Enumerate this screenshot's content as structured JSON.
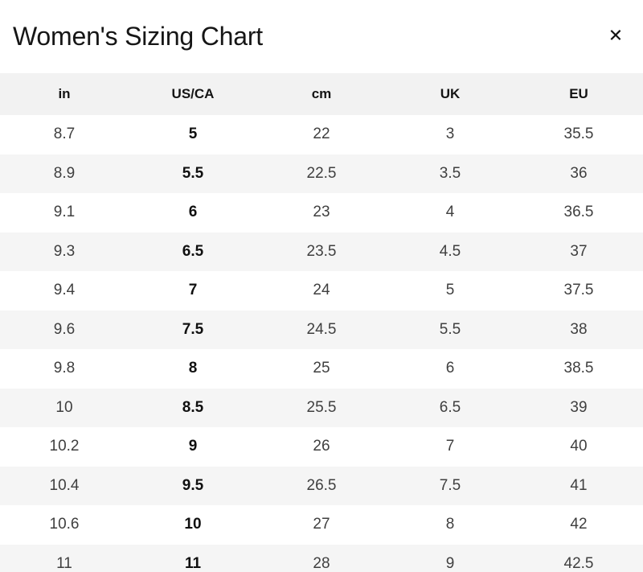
{
  "modal": {
    "title": "Women's Sizing Chart",
    "close_glyph": "✕"
  },
  "table": {
    "columns": [
      "in",
      "US/CA",
      "cm",
      "UK",
      "EU"
    ],
    "bold_column_index": 1,
    "rows": [
      [
        "8.7",
        "5",
        "22",
        "3",
        "35.5"
      ],
      [
        "8.9",
        "5.5",
        "22.5",
        "3.5",
        "36"
      ],
      [
        "9.1",
        "6",
        "23",
        "4",
        "36.5"
      ],
      [
        "9.3",
        "6.5",
        "23.5",
        "4.5",
        "37"
      ],
      [
        "9.4",
        "7",
        "24",
        "5",
        "37.5"
      ],
      [
        "9.6",
        "7.5",
        "24.5",
        "5.5",
        "38"
      ],
      [
        "9.8",
        "8",
        "25",
        "6",
        "38.5"
      ],
      [
        "10",
        "8.5",
        "25.5",
        "6.5",
        "39"
      ],
      [
        "10.2",
        "9",
        "26",
        "7",
        "40"
      ],
      [
        "10.4",
        "9.5",
        "26.5",
        "7.5",
        "41"
      ],
      [
        "10.6",
        "10",
        "27",
        "8",
        "42"
      ],
      [
        "11",
        "11",
        "28",
        "9",
        "42.5"
      ]
    ]
  },
  "colors": {
    "header_row_bg": "#f2f2f2",
    "stripe_row_bg": "#f5f5f5",
    "title_text": "#161616",
    "cell_text": "#3f3f3f",
    "bold_cell_text": "#101010"
  }
}
